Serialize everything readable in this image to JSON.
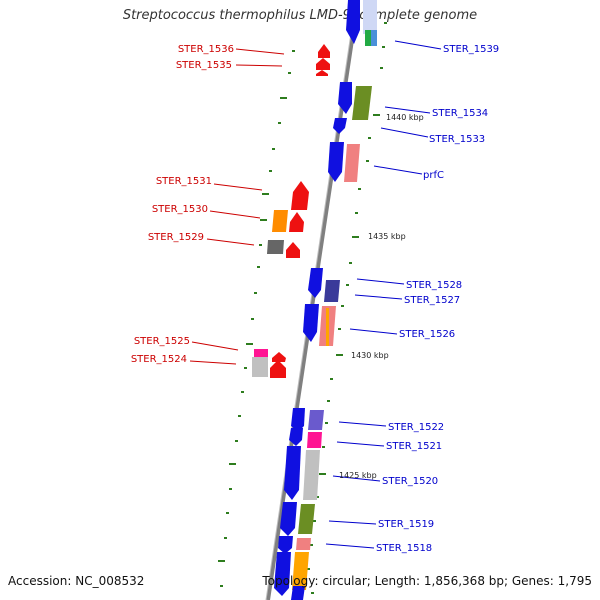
{
  "title": "Streptococcus thermophilus LMD-9, complete genome",
  "footer": {
    "accession": "Accession: NC_008532",
    "summary": "Topology: circular; Length: 1,856,368 bp; Genes: 1,795"
  },
  "colors": {
    "left_label": "#cc0000",
    "right_label": "#0000cc",
    "backbone": "#808080",
    "tick": "#2e7d1e"
  },
  "left_genes": [
    "STER_1536",
    "STER_1535",
    "STER_1531",
    "STER_1530",
    "STER_1529",
    "STER_1525",
    "STER_1524"
  ],
  "right_genes": [
    "STER_1539",
    "STER_1534",
    "STER_1533",
    "prfC",
    "STER_1528",
    "STER_1527",
    "STER_1526",
    "STER_1522",
    "STER_1521",
    "STER_1520",
    "STER_1519",
    "STER_1518"
  ],
  "positions": [
    "1440 kbp",
    "1435 kbp",
    "1430 kbp",
    "1425 kbp"
  ]
}
